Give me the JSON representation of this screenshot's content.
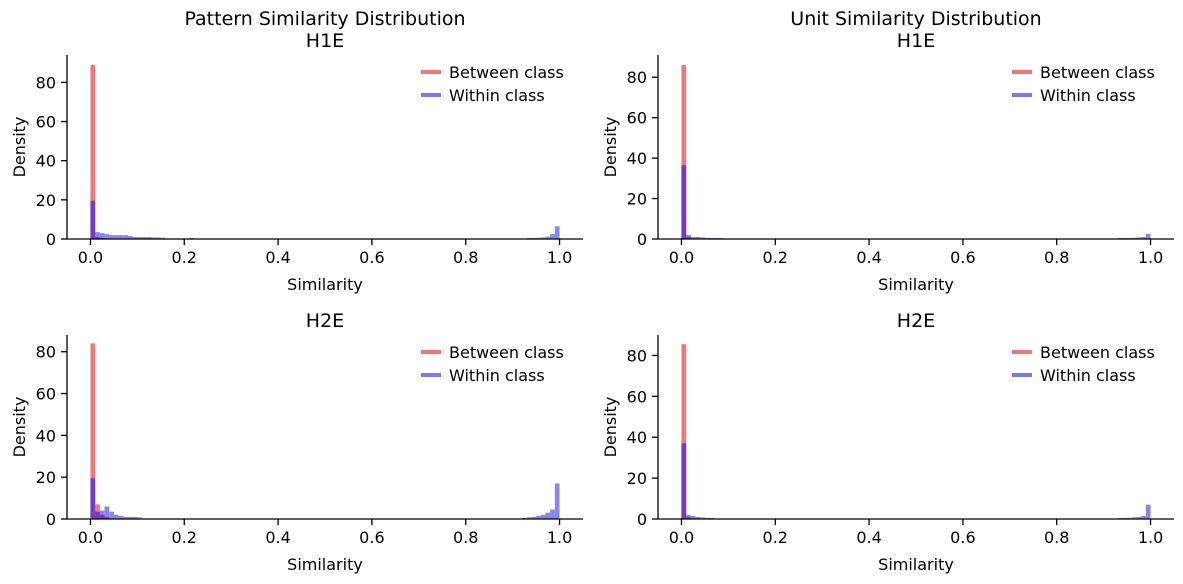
{
  "colors": {
    "between": "#f07878",
    "within": "#7b78f0",
    "overlap": "#7a3ac8"
  },
  "chart_data": [
    {
      "type": "histogram",
      "title": [
        "Pattern Similarity Distribution",
        "H1E"
      ],
      "xlabel": "Similarity",
      "ylabel": "Density",
      "xlim": [
        -0.05,
        1.05
      ],
      "ylim": [
        0,
        94
      ],
      "xticks": [
        "0.0",
        "0.2",
        "0.4",
        "0.6",
        "0.8",
        "1.0"
      ],
      "yticks": [
        "0",
        "20",
        "40",
        "60",
        "80"
      ],
      "legend": "top-right",
      "bin_width": 0.01,
      "series": [
        {
          "name": "Between class",
          "bins": [
            [
              0.0,
              89.0
            ],
            [
              0.01,
              1.0
            ],
            [
              0.02,
              0.5
            ]
          ]
        },
        {
          "name": "Within class",
          "bins": [
            [
              0.0,
              19.5
            ],
            [
              0.01,
              3.5
            ],
            [
              0.02,
              3.0
            ],
            [
              0.03,
              2.5
            ],
            [
              0.04,
              2.0
            ],
            [
              0.05,
              2.0
            ],
            [
              0.06,
              2.0
            ],
            [
              0.07,
              2.0
            ],
            [
              0.08,
              1.5
            ],
            [
              0.09,
              1.0
            ],
            [
              0.1,
              1.0
            ],
            [
              0.11,
              1.0
            ],
            [
              0.12,
              1.0
            ],
            [
              0.13,
              0.8
            ],
            [
              0.14,
              0.8
            ],
            [
              0.15,
              0.6
            ],
            [
              0.21,
              0.5
            ],
            [
              0.93,
              0.5
            ],
            [
              0.94,
              0.5
            ],
            [
              0.95,
              0.6
            ],
            [
              0.96,
              0.8
            ],
            [
              0.97,
              1.2
            ],
            [
              0.98,
              2.5
            ],
            [
              0.99,
              6.5
            ]
          ]
        }
      ]
    },
    {
      "type": "histogram",
      "title": [
        "Unit Similarity Distribution",
        "H1E"
      ],
      "xlabel": "Similarity",
      "ylabel": "Density",
      "xlim": [
        -0.05,
        1.05
      ],
      "ylim": [
        0,
        91
      ],
      "xticks": [
        "0.0",
        "0.2",
        "0.4",
        "0.6",
        "0.8",
        "1.0"
      ],
      "yticks": [
        "0",
        "20",
        "40",
        "60",
        "80"
      ],
      "legend": "top-right",
      "bin_width": 0.01,
      "series": [
        {
          "name": "Between class",
          "bins": [
            [
              0.0,
              86.0
            ],
            [
              0.01,
              1.0
            ]
          ]
        },
        {
          "name": "Within class",
          "bins": [
            [
              0.0,
              36.5
            ],
            [
              0.01,
              2.0
            ],
            [
              0.02,
              1.0
            ],
            [
              0.03,
              1.0
            ],
            [
              0.04,
              0.8
            ],
            [
              0.05,
              0.6
            ],
            [
              0.06,
              0.5
            ],
            [
              0.07,
              0.5
            ],
            [
              0.08,
              0.4
            ],
            [
              0.93,
              0.5
            ],
            [
              0.94,
              0.5
            ],
            [
              0.95,
              0.5
            ],
            [
              0.96,
              0.6
            ],
            [
              0.97,
              0.8
            ],
            [
              0.98,
              1.0
            ],
            [
              0.99,
              2.5
            ]
          ]
        }
      ]
    },
    {
      "type": "histogram",
      "title": [
        "H2E"
      ],
      "xlabel": "Similarity",
      "ylabel": "Density",
      "xlim": [
        -0.05,
        1.05
      ],
      "ylim": [
        0,
        88
      ],
      "xticks": [
        "0.0",
        "0.2",
        "0.4",
        "0.6",
        "0.8",
        "1.0"
      ],
      "yticks": [
        "0",
        "20",
        "40",
        "60",
        "80"
      ],
      "legend": "top-right",
      "bin_width": 0.01,
      "series": [
        {
          "name": "Between class",
          "bins": [
            [
              0.0,
              84.0
            ],
            [
              0.01,
              7.0
            ],
            [
              0.02,
              2.0
            ],
            [
              0.03,
              1.0
            ]
          ]
        },
        {
          "name": "Within class",
          "bins": [
            [
              0.0,
              19.5
            ],
            [
              0.01,
              3.5
            ],
            [
              0.02,
              4.0
            ],
            [
              0.03,
              6.0
            ],
            [
              0.04,
              3.5
            ],
            [
              0.05,
              2.0
            ],
            [
              0.06,
              1.5
            ],
            [
              0.07,
              1.0
            ],
            [
              0.08,
              1.0
            ],
            [
              0.09,
              1.0
            ],
            [
              0.1,
              0.8
            ],
            [
              0.92,
              0.5
            ],
            [
              0.93,
              0.8
            ],
            [
              0.94,
              1.0
            ],
            [
              0.95,
              1.5
            ],
            [
              0.96,
              2.0
            ],
            [
              0.97,
              3.0
            ],
            [
              0.98,
              4.5
            ],
            [
              0.99,
              17.0
            ]
          ]
        }
      ]
    },
    {
      "type": "histogram",
      "title": [
        "H2E"
      ],
      "xlabel": "Similarity",
      "ylabel": "Density",
      "xlim": [
        -0.05,
        1.05
      ],
      "ylim": [
        0,
        90
      ],
      "xticks": [
        "0.0",
        "0.2",
        "0.4",
        "0.6",
        "0.8",
        "1.0"
      ],
      "yticks": [
        "0",
        "20",
        "40",
        "60",
        "80"
      ],
      "legend": "top-right",
      "bin_width": 0.01,
      "series": [
        {
          "name": "Between class",
          "bins": [
            [
              0.0,
              85.5
            ],
            [
              0.01,
              1.0
            ]
          ]
        },
        {
          "name": "Within class",
          "bins": [
            [
              0.0,
              37.0
            ],
            [
              0.01,
              2.0
            ],
            [
              0.02,
              1.5
            ],
            [
              0.03,
              1.0
            ],
            [
              0.04,
              0.8
            ],
            [
              0.05,
              0.6
            ],
            [
              0.06,
              0.5
            ],
            [
              0.93,
              0.5
            ],
            [
              0.94,
              0.5
            ],
            [
              0.95,
              0.6
            ],
            [
              0.96,
              0.8
            ],
            [
              0.97,
              1.0
            ],
            [
              0.98,
              1.5
            ],
            [
              0.99,
              7.0
            ]
          ]
        }
      ]
    }
  ]
}
